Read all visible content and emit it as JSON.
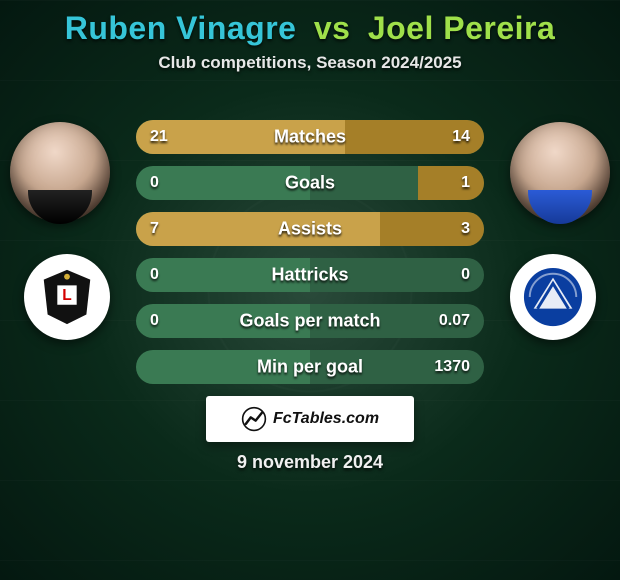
{
  "header": {
    "player1_name": "Ruben Vinagre",
    "vs_label": "vs",
    "player2_name": "Joel Pereira",
    "title_fontsize": 32,
    "player1_color": "#36c5d8",
    "vs_color": "#9fe04a",
    "player2_color": "#9fe04a",
    "subtitle": "Club competitions, Season 2024/2025",
    "subtitle_fontsize": 17
  },
  "players": {
    "left_semantic": "player1-avatar",
    "right_semantic": "player2-avatar"
  },
  "crests": {
    "left_semantic": "club1-crest",
    "right_semantic": "club2-crest",
    "club1_primary": "#111111",
    "club1_accent": "#d40000",
    "club2_primary": "#0a3ea0",
    "club2_accent": "#ffffff"
  },
  "bars": {
    "track_left_color": "#3a7a53",
    "track_right_color": "#2f6144",
    "fill_left_color": "#c9a24a",
    "fill_right_color": "#a57f28",
    "label_fontsize": 18,
    "value_fontsize": 16,
    "rows": [
      {
        "label": "Matches",
        "left_value": "21",
        "right_value": "14",
        "left_pct": 60,
        "right_pct": 40
      },
      {
        "label": "Goals",
        "left_value": "0",
        "right_value": "1",
        "left_pct": 0,
        "right_pct": 19
      },
      {
        "label": "Assists",
        "left_value": "7",
        "right_value": "3",
        "left_pct": 70,
        "right_pct": 30
      },
      {
        "label": "Hattricks",
        "left_value": "0",
        "right_value": "0",
        "left_pct": 0,
        "right_pct": 0
      },
      {
        "label": "Goals per match",
        "left_value": "0",
        "right_value": "0.07",
        "left_pct": 0,
        "right_pct": 0
      },
      {
        "label": "Min per goal",
        "left_value": "",
        "right_value": "1370",
        "left_pct": 0,
        "right_pct": 0
      }
    ]
  },
  "branding": {
    "text": "FcTables.com",
    "icon_semantic": "fctables-logo-icon"
  },
  "footer": {
    "date_text": "9 november 2024"
  }
}
